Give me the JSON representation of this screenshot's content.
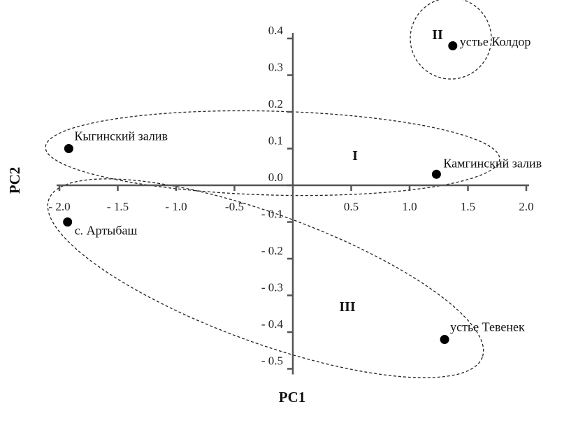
{
  "chart_data": {
    "type": "scatter",
    "xlabel": "PC1",
    "ylabel": "PC2",
    "xlim": [
      -2.0,
      2.0
    ],
    "ylim": [
      -0.5,
      0.4
    ],
    "x_ticks": [
      {
        "value": -2.0,
        "label": "- 2.0"
      },
      {
        "value": -1.5,
        "label": "- 1.5"
      },
      {
        "value": -1.0,
        "label": "- 1.0"
      },
      {
        "value": -0.5,
        "label": "-0.5"
      },
      {
        "value": 0.5,
        "label": "0.5"
      },
      {
        "value": 1.0,
        "label": "1.0"
      },
      {
        "value": 1.5,
        "label": "1.5"
      },
      {
        "value": 2.0,
        "label": "2.0"
      }
    ],
    "y_ticks": [
      {
        "value": 0.4,
        "label": "0.4"
      },
      {
        "value": 0.3,
        "label": "0.3"
      },
      {
        "value": 0.2,
        "label": "0.2"
      },
      {
        "value": 0.1,
        "label": "0.1"
      },
      {
        "value": 0.0,
        "label": "0.0"
      },
      {
        "value": -0.1,
        "label": "- 0.1"
      },
      {
        "value": -0.2,
        "label": "- 0.2"
      },
      {
        "value": -0.3,
        "label": "- 0.3"
      },
      {
        "value": -0.4,
        "label": "- 0.4"
      },
      {
        "value": -0.5,
        "label": "- 0.5"
      }
    ],
    "points": [
      {
        "label": "устье Колдор",
        "x": 1.37,
        "y": 0.38
      },
      {
        "label": "Кыгинский залив",
        "x": -1.92,
        "y": 0.1
      },
      {
        "label": "Камгинский залив",
        "x": 1.23,
        "y": 0.03
      },
      {
        "label": "с. Артыбаш",
        "x": -1.93,
        "y": -0.1
      },
      {
        "label": "устье Тевенек",
        "x": 1.3,
        "y": -0.42
      }
    ],
    "clusters": [
      {
        "label": "I",
        "members": [
          "Кыгинский залив",
          "Камгинский залив"
        ]
      },
      {
        "label": "II",
        "members": [
          "устье Колдор"
        ]
      },
      {
        "label": "III",
        "members": [
          "с. Артыбаш",
          "устье Тевенек"
        ]
      }
    ],
    "grid": false,
    "legend": "none"
  }
}
